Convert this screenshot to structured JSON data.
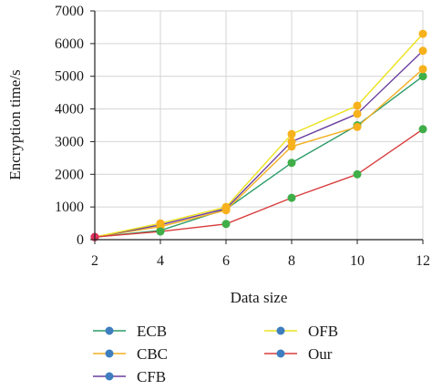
{
  "chart_data": {
    "type": "line",
    "x": [
      2,
      4,
      6,
      8,
      10,
      12
    ],
    "xlabel": "Data size",
    "ylabel": "Encryption time/s",
    "xlim": [
      2,
      12
    ],
    "ylim": [
      0,
      7000
    ],
    "xticks": [
      "2",
      "4",
      "6",
      "8",
      "10",
      "12"
    ],
    "yticks": [
      "0",
      "1000",
      "2000",
      "3000",
      "4000",
      "5000",
      "6000",
      "7000"
    ],
    "grid": true,
    "legend_position": "bottom",
    "series": [
      {
        "name": "ECB",
        "values": [
          80,
          280,
          930,
          2350,
          3500,
          5000
        ],
        "line_color": "#2e9c6a",
        "marker_color": "#3fae48"
      },
      {
        "name": "CBC",
        "values": [
          80,
          400,
          900,
          2850,
          3450,
          5220
        ],
        "line_color": "#f4b024",
        "marker_color": "#f7b11c"
      },
      {
        "name": "CFB",
        "values": [
          80,
          450,
          950,
          3000,
          3850,
          5780
        ],
        "line_color": "#6a3fa0",
        "marker_color": "#f7b11c"
      },
      {
        "name": "OFB",
        "values": [
          80,
          500,
          1000,
          3230,
          4100,
          6300
        ],
        "line_color": "#ece21e",
        "marker_color": "#f7b11c"
      },
      {
        "name": "Our",
        "values": [
          80,
          250,
          480,
          1280,
          2000,
          3380
        ],
        "line_color": "#d93b3b",
        "marker_color": "#3fae48"
      }
    ]
  },
  "legend_marker_color": "#3e7ebf"
}
